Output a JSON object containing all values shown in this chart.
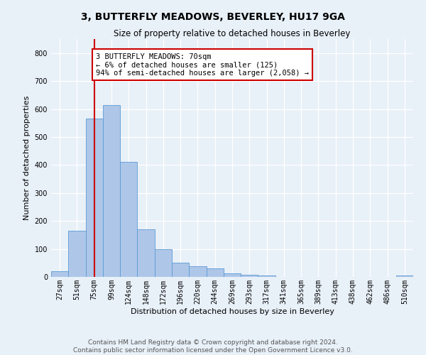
{
  "title": "3, BUTTERFLY MEADOWS, BEVERLEY, HU17 9GA",
  "subtitle": "Size of property relative to detached houses in Beverley",
  "xlabel": "Distribution of detached houses by size in Beverley",
  "ylabel": "Number of detached properties",
  "bar_labels": [
    "27sqm",
    "51sqm",
    "75sqm",
    "99sqm",
    "124sqm",
    "148sqm",
    "172sqm",
    "196sqm",
    "220sqm",
    "244sqm",
    "269sqm",
    "293sqm",
    "317sqm",
    "341sqm",
    "365sqm",
    "389sqm",
    "413sqm",
    "438sqm",
    "462sqm",
    "486sqm",
    "510sqm"
  ],
  "bar_values": [
    20,
    165,
    565,
    615,
    410,
    170,
    100,
    50,
    38,
    30,
    13,
    8,
    5,
    1,
    1,
    0,
    0,
    0,
    0,
    0,
    5
  ],
  "bar_color": "#aec6e8",
  "bar_edge_color": "#5b9bd5",
  "vline_x": 2,
  "vline_color": "#cc0000",
  "annotation_text": "3 BUTTERFLY MEADOWS: 70sqm\n← 6% of detached houses are smaller (125)\n94% of semi-detached houses are larger (2,058) →",
  "annotation_box_color": "#ffffff",
  "annotation_box_edge_color": "#cc0000",
  "ylim": [
    0,
    850
  ],
  "yticks": [
    0,
    100,
    200,
    300,
    400,
    500,
    600,
    700,
    800
  ],
  "footer_line1": "Contains HM Land Registry data © Crown copyright and database right 2024.",
  "footer_line2": "Contains public sector information licensed under the Open Government Licence v3.0.",
  "background_color": "#e8f0f8",
  "plot_bg_color": "#e8f0f8",
  "grid_color": "#ffffff",
  "title_fontsize": 10,
  "subtitle_fontsize": 8.5,
  "axis_label_fontsize": 8,
  "tick_fontsize": 7,
  "annotation_fontsize": 7.5,
  "footer_fontsize": 6.5
}
